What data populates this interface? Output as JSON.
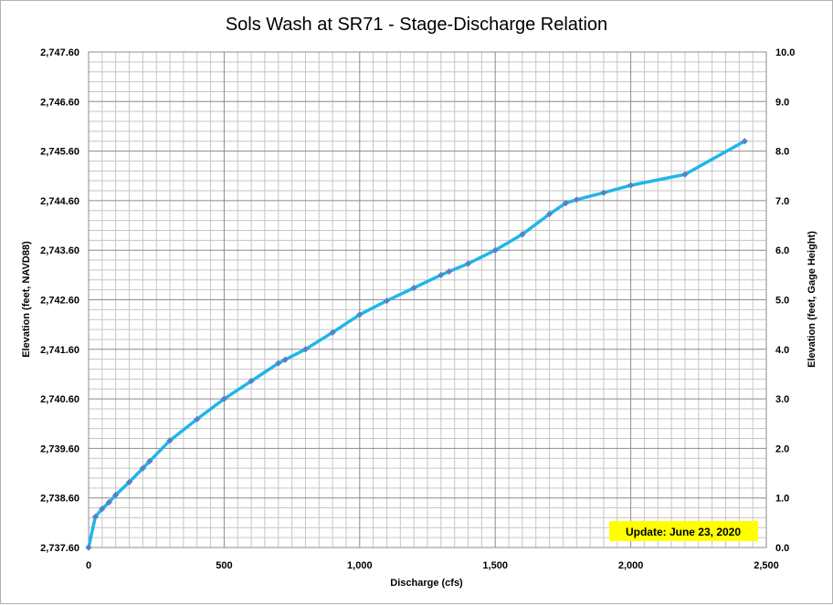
{
  "chart_data": {
    "type": "line",
    "title": "Sols Wash at SR71 - Stage-Discharge Relation",
    "xlabel": "Discharge (cfs)",
    "ylabel": "Elevation (feet, NAVD88)",
    "ylabel_right": "Elevation (feet, Gage Height)",
    "xlim": [
      0,
      2500
    ],
    "ylim": [
      2737.6,
      2747.6
    ],
    "ylim_right": [
      0.0,
      10.0
    ],
    "x_ticks": [
      0,
      500,
      1000,
      1500,
      2000,
      2500
    ],
    "x_tick_labels": [
      "0",
      "500",
      "1,000",
      "1,500",
      "2,000",
      "2,500"
    ],
    "y_ticks": [
      2737.6,
      2738.6,
      2739.6,
      2740.6,
      2741.6,
      2742.6,
      2743.6,
      2744.6,
      2745.6,
      2746.6,
      2747.6
    ],
    "y_tick_labels": [
      "2,737.60",
      "2,738.60",
      "2,739.60",
      "2,740.60",
      "2,741.60",
      "2,742.60",
      "2,743.60",
      "2,744.60",
      "2,745.60",
      "2,746.60",
      "2,747.60"
    ],
    "y_right_tick_labels": [
      "0.0",
      "1.0",
      "2.0",
      "3.0",
      "4.0",
      "5.0",
      "6.0",
      "7.0",
      "8.0",
      "9.0",
      "10.0"
    ],
    "grid": true,
    "annotation": "Update: June 23, 2020",
    "series": [
      {
        "color": "#1fb6ea",
        "marker_color": "#5b80c0",
        "x": [
          0,
          25,
          50,
          75,
          100,
          150,
          200,
          225,
          300,
          400,
          500,
          600,
          700,
          725,
          800,
          900,
          1000,
          1100,
          1200,
          1300,
          1330,
          1400,
          1500,
          1600,
          1700,
          1760,
          1800,
          1900,
          2000,
          2200,
          2420
        ],
        "y": [
          2737.6,
          2738.22,
          2738.38,
          2738.51,
          2738.66,
          2738.92,
          2739.2,
          2739.34,
          2739.76,
          2740.19,
          2740.6,
          2740.96,
          2741.32,
          2741.39,
          2741.6,
          2741.94,
          2742.3,
          2742.58,
          2742.84,
          2743.1,
          2743.17,
          2743.33,
          2743.6,
          2743.92,
          2744.33,
          2744.55,
          2744.62,
          2744.76,
          2744.91,
          2745.13,
          2745.8
        ]
      }
    ]
  }
}
